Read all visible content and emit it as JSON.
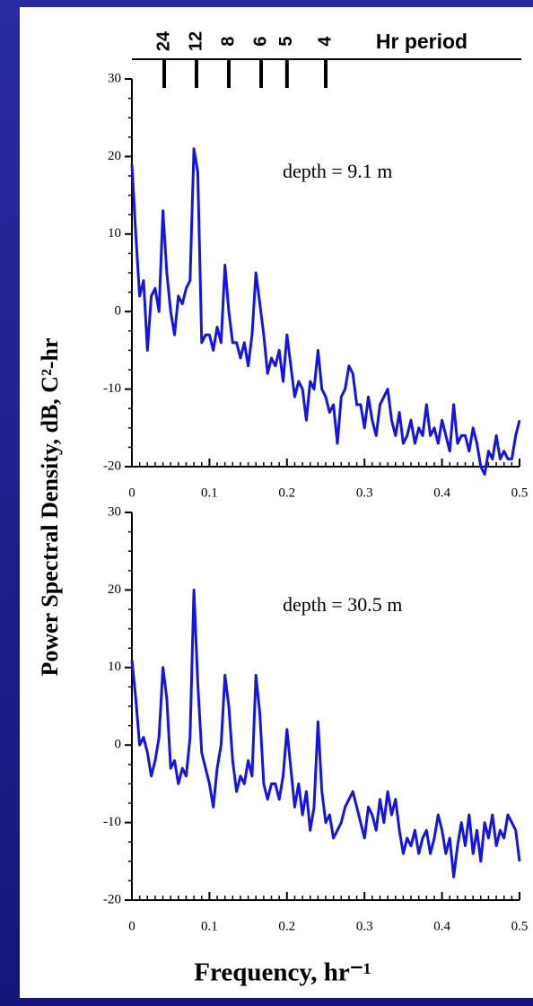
{
  "ylabel": "Power Spectral Density, dB, C²-hr",
  "xlabel": "Frequency, hr⁻¹",
  "chart_data": [
    {
      "type": "line",
      "annotation": "depth = 9.1 m",
      "top_axis": {
        "label": "Hr period",
        "ticks": [
          {
            "value": 0.0417,
            "label": "24"
          },
          {
            "value": 0.0833,
            "label": "12"
          },
          {
            "value": 0.125,
            "label": "8"
          },
          {
            "value": 0.1667,
            "label": "6"
          },
          {
            "value": 0.2,
            "label": "5"
          },
          {
            "value": 0.25,
            "label": "4"
          }
        ]
      },
      "x": [
        0,
        0.005,
        0.01,
        0.015,
        0.02,
        0.025,
        0.03,
        0.035,
        0.04,
        0.045,
        0.05,
        0.055,
        0.06,
        0.065,
        0.07,
        0.075,
        0.08,
        0.085,
        0.09,
        0.095,
        0.1,
        0.105,
        0.11,
        0.115,
        0.12,
        0.125,
        0.13,
        0.135,
        0.14,
        0.145,
        0.15,
        0.155,
        0.16,
        0.165,
        0.17,
        0.175,
        0.18,
        0.185,
        0.19,
        0.195,
        0.2,
        0.205,
        0.21,
        0.215,
        0.22,
        0.225,
        0.23,
        0.235,
        0.24,
        0.245,
        0.25,
        0.255,
        0.26,
        0.265,
        0.27,
        0.275,
        0.28,
        0.285,
        0.29,
        0.295,
        0.3,
        0.305,
        0.31,
        0.315,
        0.32,
        0.325,
        0.33,
        0.335,
        0.34,
        0.345,
        0.35,
        0.355,
        0.36,
        0.365,
        0.37,
        0.375,
        0.38,
        0.385,
        0.39,
        0.395,
        0.4,
        0.405,
        0.41,
        0.415,
        0.42,
        0.425,
        0.43,
        0.435,
        0.44,
        0.445,
        0.45,
        0.455,
        0.46,
        0.465,
        0.47,
        0.475,
        0.48,
        0.485,
        0.49,
        0.495,
        0.5
      ],
      "series": [
        {
          "color": "#1414e6",
          "values": [
            19,
            10,
            2,
            4,
            -5,
            2,
            3,
            0,
            13,
            5,
            0,
            -3,
            2,
            1,
            3,
            4,
            21,
            18,
            -4,
            -3,
            -3,
            -5,
            -2,
            -4,
            6,
            0,
            -4,
            -4,
            -6,
            -4,
            -7,
            -3,
            5,
            1,
            -3,
            -8,
            -6,
            -7,
            -5,
            -9,
            -3,
            -7,
            -11,
            -9,
            -10,
            -14,
            -9,
            -10,
            -5,
            -10,
            -11,
            -13,
            -12,
            -17,
            -11,
            -10,
            -7,
            -8,
            -12,
            -12,
            -15,
            -11,
            -14,
            -16,
            -12,
            -11,
            -10,
            -14,
            -16,
            -13,
            -17,
            -16,
            -14,
            -17,
            -15,
            -16,
            -12,
            -16,
            -15,
            -17,
            -14,
            -16,
            -18,
            -12,
            -17,
            -16,
            -16,
            -18,
            -15,
            -17,
            -20,
            -21,
            -18,
            -19,
            -16,
            -19,
            -18,
            -19,
            -19,
            -16,
            -14
          ]
        }
      ],
      "xlim": [
        0,
        0.5
      ],
      "ylim": [
        -20,
        30
      ],
      "xticks": [
        0,
        0.1,
        0.2,
        0.3,
        0.4,
        0.5
      ],
      "yticks": [
        -20,
        -10,
        0,
        10,
        20,
        30
      ],
      "xminorticks": [
        0.01,
        0.02,
        0.03,
        0.04,
        0.05,
        0.06,
        0.07,
        0.08,
        0.09,
        0.11,
        0.12,
        0.13,
        0.14,
        0.15,
        0.16,
        0.17,
        0.18,
        0.19,
        0.21,
        0.22,
        0.23,
        0.24,
        0.25,
        0.26,
        0.27,
        0.28,
        0.29,
        0.31,
        0.32,
        0.33,
        0.34,
        0.35,
        0.36,
        0.37,
        0.38,
        0.39,
        0.41,
        0.42,
        0.43,
        0.44,
        0.45,
        0.46,
        0.47,
        0.48,
        0.49
      ],
      "yminorticks": [
        -17.5,
        -15,
        -12.5,
        -7.5,
        -5,
        -2.5,
        2.5,
        5,
        7.5,
        12.5,
        15,
        17.5,
        22.5,
        25,
        27.5
      ]
    },
    {
      "type": "line",
      "annotation": "depth = 30.5 m",
      "x": [
        0,
        0.005,
        0.01,
        0.015,
        0.02,
        0.025,
        0.03,
        0.035,
        0.04,
        0.045,
        0.05,
        0.055,
        0.06,
        0.065,
        0.07,
        0.075,
        0.08,
        0.085,
        0.09,
        0.095,
        0.1,
        0.105,
        0.11,
        0.115,
        0.12,
        0.125,
        0.13,
        0.135,
        0.14,
        0.145,
        0.15,
        0.155,
        0.16,
        0.165,
        0.17,
        0.175,
        0.18,
        0.185,
        0.19,
        0.195,
        0.2,
        0.205,
        0.21,
        0.215,
        0.22,
        0.225,
        0.23,
        0.235,
        0.24,
        0.245,
        0.25,
        0.255,
        0.26,
        0.265,
        0.27,
        0.275,
        0.28,
        0.285,
        0.29,
        0.295,
        0.3,
        0.305,
        0.31,
        0.315,
        0.32,
        0.325,
        0.33,
        0.335,
        0.34,
        0.345,
        0.35,
        0.355,
        0.36,
        0.365,
        0.37,
        0.375,
        0.38,
        0.385,
        0.39,
        0.395,
        0.4,
        0.405,
        0.41,
        0.415,
        0.42,
        0.425,
        0.43,
        0.435,
        0.44,
        0.445,
        0.45,
        0.455,
        0.46,
        0.465,
        0.47,
        0.475,
        0.48,
        0.485,
        0.49,
        0.495,
        0.5
      ],
      "series": [
        {
          "color": "#1414e6",
          "values": [
            11,
            6,
            0,
            1,
            -1,
            -4,
            -2,
            1,
            10,
            6,
            -3,
            -2,
            -5,
            -3,
            -4,
            1,
            20,
            8,
            -1,
            -3,
            -5,
            -8,
            -3,
            0,
            9,
            5,
            -2,
            -6,
            -4,
            -5,
            -2,
            -4,
            9,
            4,
            -5,
            -7,
            -5,
            -5,
            -7,
            -4,
            2,
            -3,
            -8,
            -5,
            -9,
            -6,
            -11,
            -8,
            3,
            -6,
            -10,
            -9,
            -12,
            -11,
            -10,
            -8,
            -7,
            -6,
            -8,
            -10,
            -12,
            -8,
            -9,
            -11,
            -7,
            -10,
            -6,
            -9,
            -7,
            -11,
            -14,
            -12,
            -13,
            -11,
            -14,
            -12,
            -11,
            -14,
            -12,
            -9,
            -11,
            -14,
            -12,
            -17,
            -13,
            -10,
            -13,
            -9,
            -14,
            -11,
            -15,
            -10,
            -12,
            -9,
            -13,
            -11,
            -12,
            -9,
            -10,
            -11,
            -15
          ]
        }
      ],
      "xlim": [
        0,
        0.5
      ],
      "ylim": [
        -20,
        30
      ],
      "xticks": [
        0,
        0.1,
        0.2,
        0.3,
        0.4,
        0.5
      ],
      "yticks": [
        -20,
        -10,
        0,
        10,
        20,
        30
      ]
    }
  ]
}
